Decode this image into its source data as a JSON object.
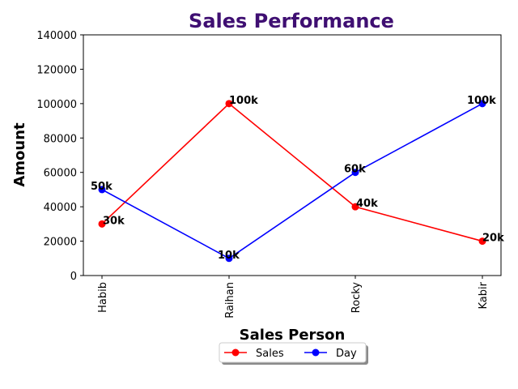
{
  "chart_data": {
    "type": "line",
    "title": "Sales Performance",
    "title_color": "#3f0f72",
    "xlabel": "Sales Person",
    "ylabel": "Amount",
    "categories": [
      "Habib",
      "Raihan",
      "Rocky",
      "Kabir"
    ],
    "ylim": [
      0,
      140000
    ],
    "yticks": [
      0,
      20000,
      40000,
      60000,
      80000,
      100000,
      120000,
      140000
    ],
    "yticklabels": [
      "0",
      "20000",
      "40000",
      "60000",
      "80000",
      "100000",
      "120000",
      "140000"
    ],
    "grid": false,
    "legend_position": "bottom-center",
    "series": [
      {
        "name": "Sales",
        "color": "#ff0000",
        "values": [
          30000,
          100000,
          40000,
          20000
        ],
        "labels": [
          "30k",
          "100k",
          "40k",
          "20k"
        ]
      },
      {
        "name": "Day",
        "color": "#0000ff",
        "values": [
          50000,
          10000,
          60000,
          100000
        ],
        "labels": [
          "50k",
          "10k",
          "60k",
          "100k"
        ]
      }
    ]
  }
}
